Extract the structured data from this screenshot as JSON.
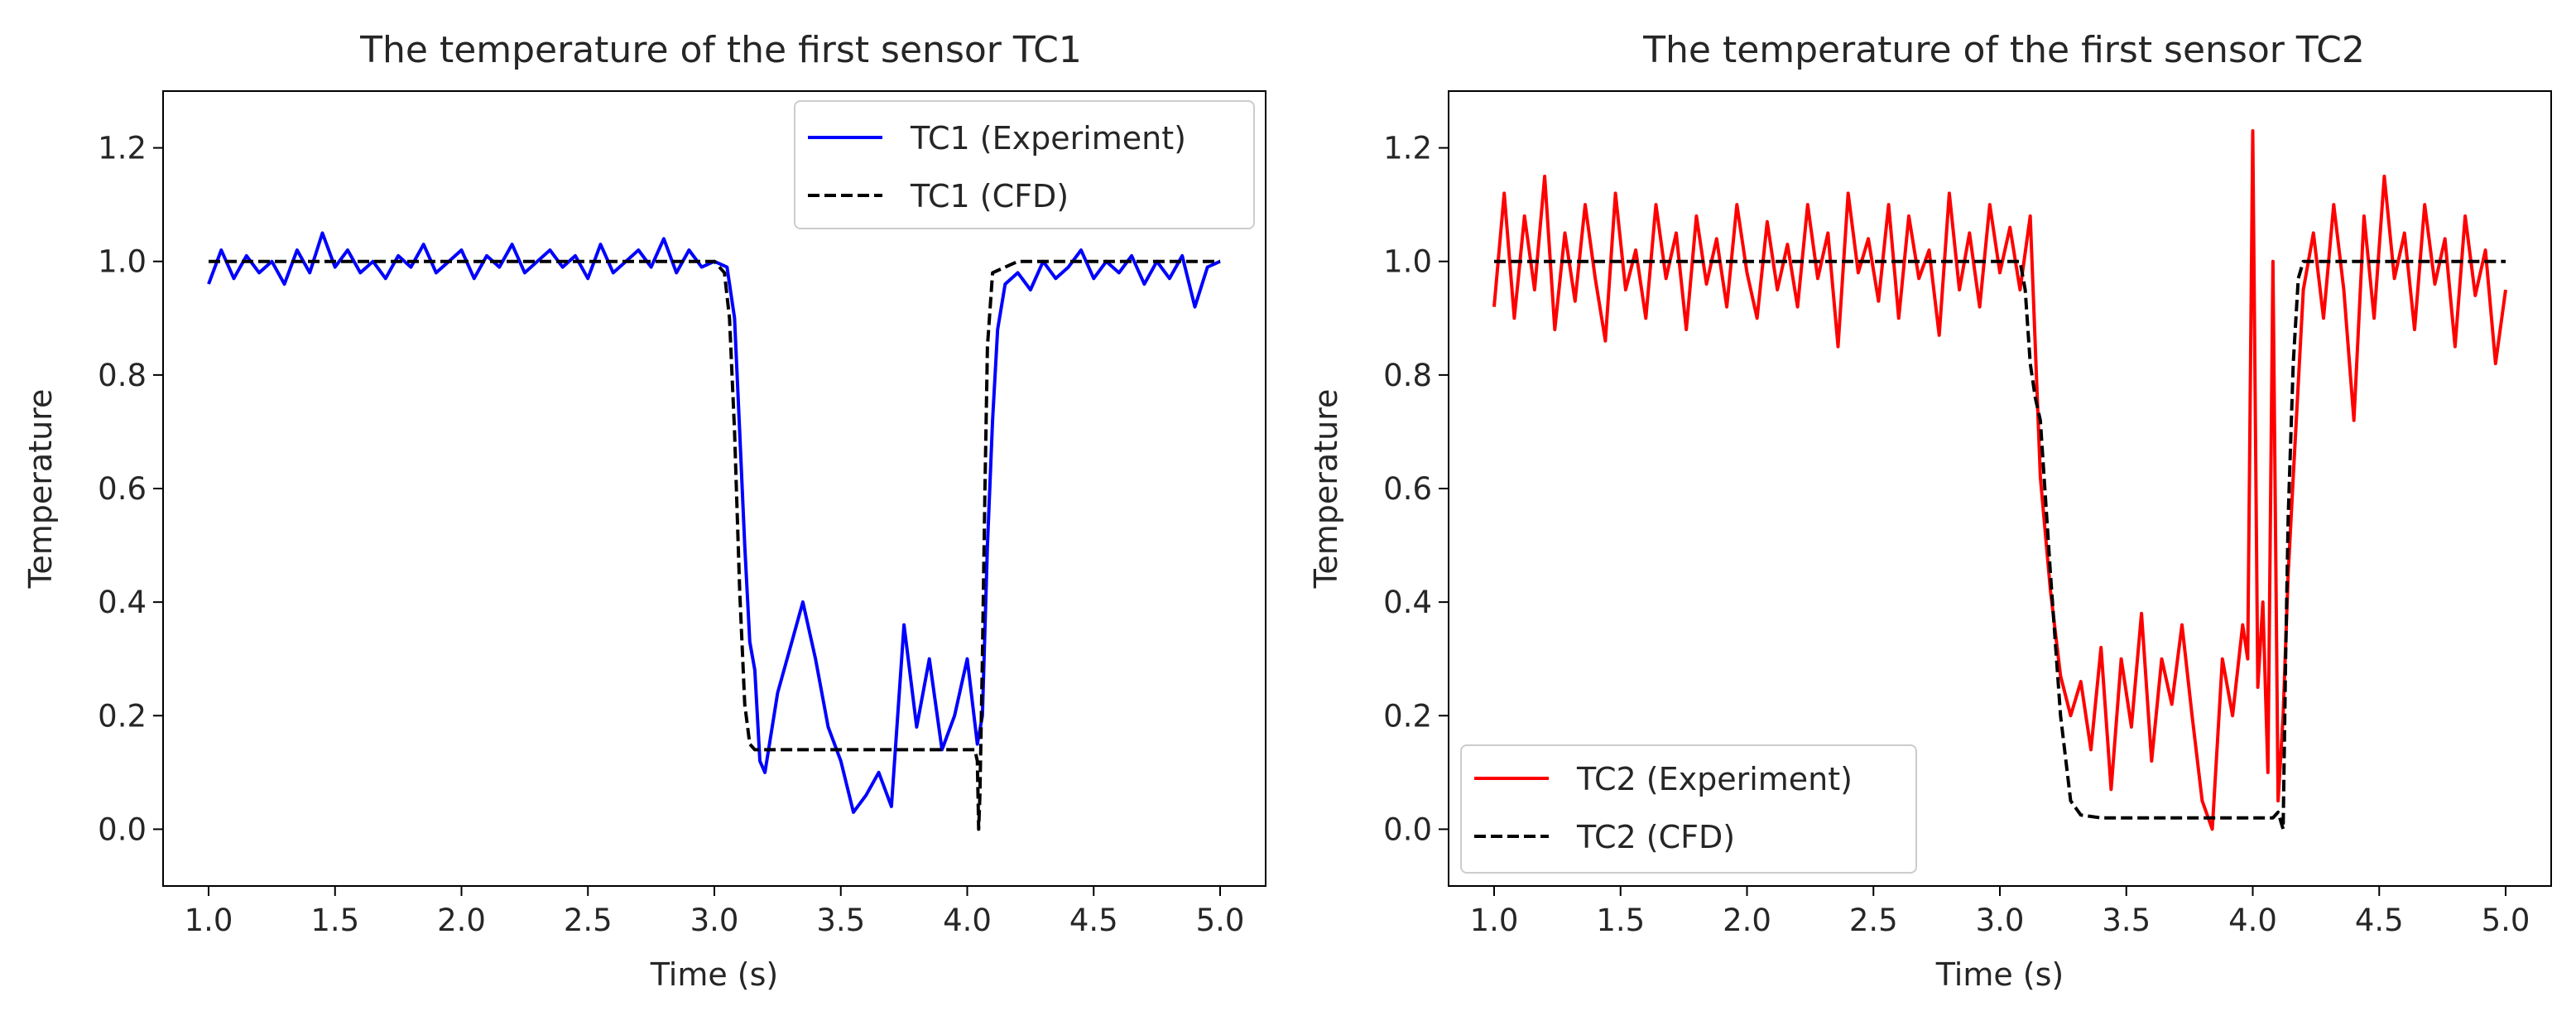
{
  "chart_data": [
    {
      "type": "line",
      "title": "The temperature of the first sensor TC1",
      "xlabel": "Time (s)",
      "ylabel": "Temperature",
      "xlim": [
        0.82,
        5.18
      ],
      "ylim": [
        -0.1,
        1.3
      ],
      "xticks": [
        "1.0",
        "1.5",
        "2.0",
        "2.5",
        "3.0",
        "3.5",
        "4.0",
        "4.5",
        "5.0"
      ],
      "yticks": [
        "0.0",
        "0.2",
        "0.4",
        "0.6",
        "0.8",
        "1.0",
        "1.2"
      ],
      "legend_position": "upper-right",
      "series": [
        {
          "name": "TC1 (Experiment)",
          "color": "#0000ff",
          "style": "solid",
          "x": [
            1.0,
            1.05,
            1.1,
            1.15,
            1.2,
            1.25,
            1.3,
            1.35,
            1.4,
            1.45,
            1.5,
            1.55,
            1.6,
            1.65,
            1.7,
            1.75,
            1.8,
            1.85,
            1.9,
            1.95,
            2.0,
            2.05,
            2.1,
            2.15,
            2.2,
            2.25,
            2.3,
            2.35,
            2.4,
            2.45,
            2.5,
            2.55,
            2.6,
            2.65,
            2.7,
            2.75,
            2.8,
            2.85,
            2.9,
            2.95,
            3.0,
            3.05,
            3.08,
            3.1,
            3.12,
            3.14,
            3.16,
            3.18,
            3.2,
            3.25,
            3.3,
            3.35,
            3.4,
            3.45,
            3.5,
            3.55,
            3.6,
            3.65,
            3.7,
            3.75,
            3.8,
            3.85,
            3.9,
            3.95,
            4.0,
            4.04,
            4.06,
            4.08,
            4.1,
            4.12,
            4.15,
            4.2,
            4.25,
            4.3,
            4.35,
            4.4,
            4.45,
            4.5,
            4.55,
            4.6,
            4.65,
            4.7,
            4.75,
            4.8,
            4.85,
            4.9,
            4.95,
            5.0
          ],
          "y": [
            0.96,
            1.02,
            0.97,
            1.01,
            0.98,
            1.0,
            0.96,
            1.02,
            0.98,
            1.05,
            0.99,
            1.02,
            0.98,
            1.0,
            0.97,
            1.01,
            0.99,
            1.03,
            0.98,
            1.0,
            1.02,
            0.97,
            1.01,
            0.99,
            1.03,
            0.98,
            1.0,
            1.02,
            0.99,
            1.01,
            0.97,
            1.03,
            0.98,
            1.0,
            1.02,
            0.99,
            1.04,
            0.98,
            1.02,
            0.99,
            1.0,
            0.99,
            0.9,
            0.7,
            0.5,
            0.33,
            0.28,
            0.12,
            0.1,
            0.24,
            0.32,
            0.4,
            0.3,
            0.18,
            0.12,
            0.03,
            0.06,
            0.1,
            0.04,
            0.36,
            0.18,
            0.3,
            0.14,
            0.2,
            0.3,
            0.15,
            0.2,
            0.5,
            0.72,
            0.88,
            0.96,
            0.98,
            0.95,
            1.0,
            0.97,
            0.99,
            1.02,
            0.97,
            1.0,
            0.98,
            1.01,
            0.96,
            1.0,
            0.97,
            1.01,
            0.92,
            0.99,
            1.0
          ]
        },
        {
          "name": "TC1 (CFD)",
          "color": "#000000",
          "style": "dashed",
          "x": [
            1.0,
            2.0,
            3.0,
            3.04,
            3.06,
            3.08,
            3.1,
            3.12,
            3.14,
            3.16,
            3.2,
            3.5,
            3.8,
            4.0,
            4.03,
            4.04,
            4.045,
            4.05,
            4.06,
            4.07,
            4.08,
            4.1,
            4.2,
            4.6,
            5.0
          ],
          "y": [
            1.0,
            1.0,
            1.0,
            0.98,
            0.9,
            0.7,
            0.42,
            0.22,
            0.15,
            0.14,
            0.14,
            0.14,
            0.14,
            0.14,
            0.14,
            0.12,
            0.0,
            0.06,
            0.3,
            0.6,
            0.85,
            0.98,
            1.0,
            1.0,
            1.0
          ]
        }
      ]
    },
    {
      "type": "line",
      "title": "The temperature of the first sensor TC2",
      "xlabel": "Time (s)",
      "ylabel": "Temperature",
      "xlim": [
        0.82,
        5.18
      ],
      "ylim": [
        -0.1,
        1.3
      ],
      "xticks": [
        "1.0",
        "1.5",
        "2.0",
        "2.5",
        "3.0",
        "3.5",
        "4.0",
        "4.5",
        "5.0"
      ],
      "yticks": [
        "0.0",
        "0.2",
        "0.4",
        "0.6",
        "0.8",
        "1.0",
        "1.2"
      ],
      "legend_position": "lower-left",
      "series": [
        {
          "name": "TC2 (Experiment)",
          "color": "#ff0000",
          "style": "solid",
          "x": [
            1.0,
            1.04,
            1.08,
            1.12,
            1.16,
            1.2,
            1.24,
            1.28,
            1.32,
            1.36,
            1.4,
            1.44,
            1.48,
            1.52,
            1.56,
            1.6,
            1.64,
            1.68,
            1.72,
            1.76,
            1.8,
            1.84,
            1.88,
            1.92,
            1.96,
            2.0,
            2.04,
            2.08,
            2.12,
            2.16,
            2.2,
            2.24,
            2.28,
            2.32,
            2.36,
            2.4,
            2.44,
            2.48,
            2.52,
            2.56,
            2.6,
            2.64,
            2.68,
            2.72,
            2.76,
            2.8,
            2.84,
            2.88,
            2.92,
            2.96,
            3.0,
            3.04,
            3.08,
            3.12,
            3.16,
            3.2,
            3.24,
            3.28,
            3.32,
            3.36,
            3.4,
            3.44,
            3.48,
            3.52,
            3.56,
            3.6,
            3.64,
            3.68,
            3.72,
            3.76,
            3.8,
            3.84,
            3.88,
            3.92,
            3.96,
            3.98,
            4.0,
            4.02,
            4.04,
            4.06,
            4.08,
            4.1,
            4.12,
            4.14,
            4.16,
            4.2,
            4.24,
            4.28,
            4.32,
            4.36,
            4.4,
            4.44,
            4.48,
            4.52,
            4.56,
            4.6,
            4.64,
            4.68,
            4.72,
            4.76,
            4.8,
            4.84,
            4.88,
            4.92,
            4.96,
            5.0
          ],
          "y": [
            0.92,
            1.12,
            0.9,
            1.08,
            0.95,
            1.15,
            0.88,
            1.05,
            0.93,
            1.1,
            0.97,
            0.86,
            1.12,
            0.95,
            1.02,
            0.9,
            1.1,
            0.97,
            1.05,
            0.88,
            1.08,
            0.96,
            1.04,
            0.92,
            1.1,
            0.98,
            0.9,
            1.07,
            0.95,
            1.03,
            0.92,
            1.1,
            0.97,
            1.05,
            0.85,
            1.12,
            0.98,
            1.04,
            0.93,
            1.1,
            0.9,
            1.08,
            0.97,
            1.02,
            0.87,
            1.12,
            0.95,
            1.05,
            0.92,
            1.1,
            0.98,
            1.06,
            0.95,
            1.08,
            0.62,
            0.42,
            0.27,
            0.2,
            0.26,
            0.14,
            0.32,
            0.07,
            0.3,
            0.18,
            0.38,
            0.12,
            0.3,
            0.22,
            0.36,
            0.2,
            0.05,
            0.0,
            0.3,
            0.2,
            0.36,
            0.3,
            1.23,
            0.25,
            0.4,
            0.1,
            1.0,
            0.05,
            0.2,
            0.45,
            0.62,
            0.95,
            1.05,
            0.9,
            1.1,
            0.95,
            0.72,
            1.08,
            0.9,
            1.15,
            0.97,
            1.05,
            0.88,
            1.1,
            0.96,
            1.04,
            0.85,
            1.08,
            0.94,
            1.02,
            0.82,
            0.95
          ]
        },
        {
          "name": "TC2 (CFD)",
          "color": "#000000",
          "style": "dashed",
          "x": [
            1.0,
            2.0,
            3.0,
            3.08,
            3.1,
            3.12,
            3.14,
            3.16,
            3.2,
            3.24,
            3.28,
            3.32,
            3.4,
            3.6,
            3.8,
            4.0,
            4.08,
            4.1,
            4.12,
            4.13,
            4.14,
            4.16,
            4.18,
            4.2,
            4.4,
            4.6,
            5.0
          ],
          "y": [
            1.0,
            1.0,
            1.0,
            1.0,
            0.95,
            0.82,
            0.76,
            0.72,
            0.45,
            0.2,
            0.05,
            0.025,
            0.02,
            0.02,
            0.02,
            0.02,
            0.02,
            0.03,
            0.0,
            0.3,
            0.55,
            0.82,
            0.97,
            1.0,
            1.0,
            1.0,
            1.0
          ]
        }
      ]
    }
  ]
}
